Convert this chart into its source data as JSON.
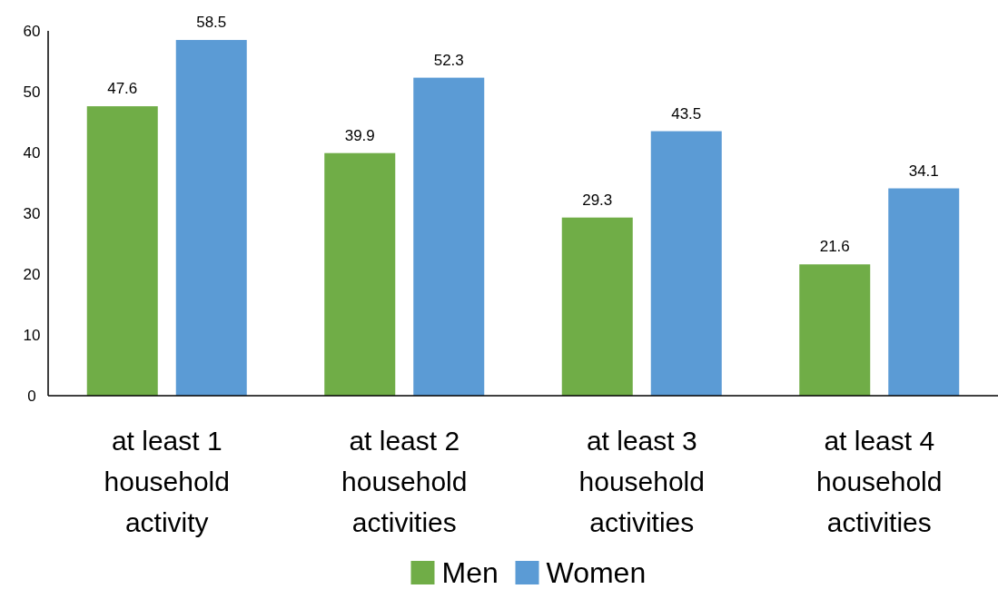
{
  "chart_data": {
    "type": "bar",
    "categories": [
      "at least 1 household activity",
      "at least 2 household activities",
      "at least 3 household activities",
      "at least 4 household activities"
    ],
    "series": [
      {
        "name": "Men",
        "color": "#70ad47",
        "values": [
          47.6,
          39.9,
          29.3,
          21.6
        ]
      },
      {
        "name": "Women",
        "color": "#5b9bd5",
        "values": [
          58.5,
          52.3,
          43.5,
          34.1
        ]
      }
    ],
    "ylim": [
      0,
      60
    ],
    "yticks": [
      0,
      10,
      20,
      30,
      40,
      50,
      60
    ],
    "data_labels": true,
    "legend": "bottom",
    "grid": false
  }
}
